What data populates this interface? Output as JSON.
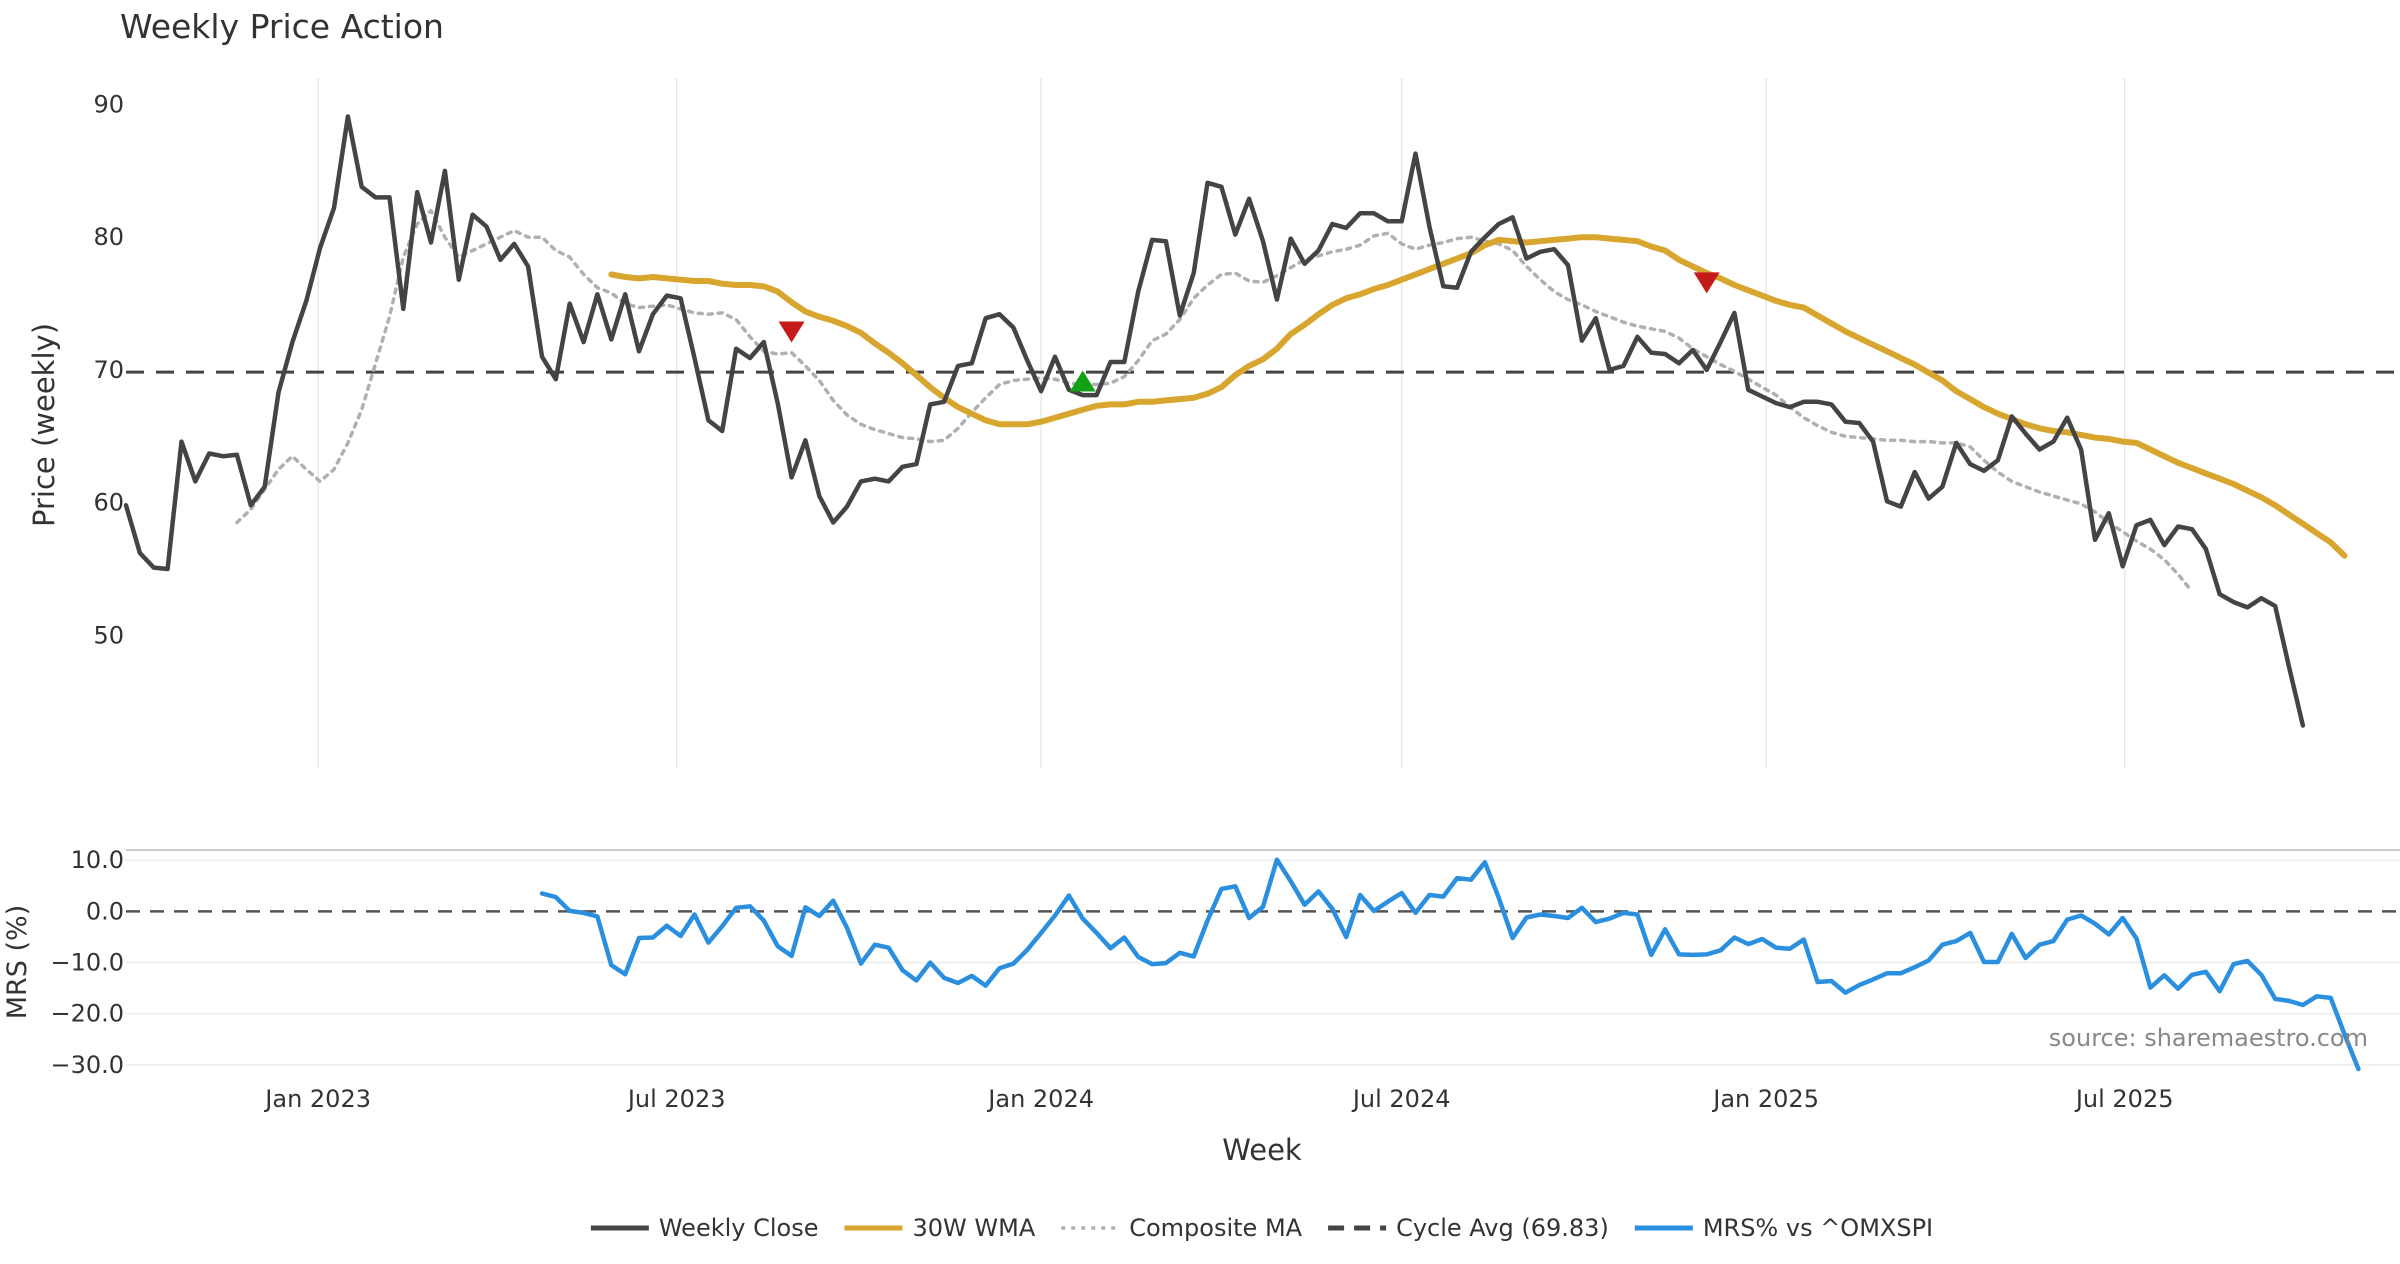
{
  "chart_data": {
    "type": "line",
    "title": "Weekly Price Action",
    "xlabel": "Week",
    "source": "source: sharemaestro.com",
    "x_range": [
      "2022-09-26",
      "2025-11-17"
    ],
    "x_ticks": [
      {
        "date": "2023-01-01",
        "label": "Jan 2023"
      },
      {
        "date": "2023-07-01",
        "label": "Jul 2023"
      },
      {
        "date": "2024-01-01",
        "label": "Jan 2024"
      },
      {
        "date": "2024-07-01",
        "label": "Jul 2024"
      },
      {
        "date": "2025-01-01",
        "label": "Jan 2025"
      },
      {
        "date": "2025-07-01",
        "label": "Jul 2025"
      }
    ],
    "price_panel": {
      "ylabel": "Price (weekly)",
      "ylim": [
        40,
        92
      ],
      "y_ticks": [
        50,
        60,
        70,
        80,
        90
      ],
      "grid": "vertical",
      "cycle_avg": 69.83,
      "series": [
        {
          "name": "Weekly Close",
          "color": "#444444",
          "style": "solid",
          "start": "2022-09-26",
          "step_days": 7,
          "values": [
            59.8,
            56.2,
            55.1,
            55.0,
            64.6,
            61.6,
            63.7,
            63.5,
            63.6,
            59.8,
            61.2,
            68.3,
            72.1,
            75.2,
            79.2,
            82.2,
            89.1,
            83.8,
            83.0,
            83.0,
            74.6,
            83.4,
            79.6,
            85.0,
            76.8,
            81.7,
            80.8,
            78.3,
            79.5,
            77.8,
            71.0,
            69.3,
            75.0,
            72.1,
            75.7,
            72.3,
            75.7,
            71.4,
            74.2,
            75.6,
            75.4,
            70.9,
            66.2,
            65.4,
            71.6,
            70.9,
            72.1,
            67.5,
            61.9,
            64.7,
            60.5,
            58.5,
            59.7,
            61.6,
            61.8,
            61.6,
            62.7,
            62.9,
            67.4,
            67.6,
            70.3,
            70.5,
            73.9,
            74.2,
            73.2,
            70.7,
            68.4,
            71.0,
            68.5,
            68.1,
            68.1,
            70.6,
            70.6,
            75.9,
            79.8,
            79.7,
            74.1,
            77.3,
            84.1,
            83.8,
            80.2,
            82.9,
            79.7,
            75.3,
            79.9,
            78.0,
            79.0,
            81.0,
            80.7,
            81.8,
            81.8,
            81.2,
            81.2,
            86.3,
            80.8,
            76.3,
            76.2,
            78.9,
            80.0,
            81.0,
            81.5,
            78.4,
            78.9,
            79.1,
            77.9,
            72.2,
            73.9,
            70.0,
            70.3,
            72.5,
            71.3,
            71.2,
            70.5,
            71.5,
            70.0,
            72.1,
            74.3,
            68.5,
            68.0,
            67.5,
            67.2,
            67.6,
            67.6,
            67.4,
            66.1,
            66.0,
            64.6,
            60.1,
            59.7,
            62.3,
            60.3,
            61.2,
            64.5,
            62.9,
            62.4,
            63.2,
            66.5,
            65.2,
            64.0,
            64.6,
            66.4,
            64.0,
            57.2,
            59.2,
            55.2,
            58.3,
            58.7,
            56.8,
            58.2,
            58.0,
            56.5,
            53.1,
            52.5,
            52.1,
            52.8,
            52.2,
            47.6,
            43.2
          ]
        },
        {
          "name": "30W WMA",
          "color": "#d8a62e",
          "style": "solid",
          "start": "2023-05-29",
          "step_days": 7,
          "values": [
            77.2,
            77.0,
            76.9,
            77.0,
            76.9,
            76.8,
            76.7,
            76.7,
            76.5,
            76.4,
            76.4,
            76.3,
            75.9,
            75.1,
            74.4,
            74.0,
            73.7,
            73.3,
            72.8,
            72.0,
            71.3,
            70.5,
            69.6,
            68.7,
            67.9,
            67.2,
            66.7,
            66.2,
            65.9,
            65.9,
            65.9,
            66.1,
            66.4,
            66.7,
            67.0,
            67.3,
            67.4,
            67.4,
            67.6,
            67.6,
            67.7,
            67.8,
            67.9,
            68.2,
            68.7,
            69.6,
            70.3,
            70.8,
            71.6,
            72.7,
            73.4,
            74.2,
            74.9,
            75.4,
            75.7,
            76.1,
            76.4,
            76.8,
            77.2,
            77.6,
            78.0,
            78.4,
            78.8,
            79.4,
            79.8,
            79.7,
            79.6,
            79.7,
            79.8,
            79.9,
            80.0,
            80.0,
            79.9,
            79.8,
            79.7,
            79.3,
            79.0,
            78.3,
            77.8,
            77.3,
            76.9,
            76.4,
            76.0,
            75.6,
            75.2,
            74.9,
            74.7,
            74.1,
            73.5,
            72.9,
            72.4,
            71.9,
            71.4,
            70.9,
            70.4,
            69.8,
            69.2,
            68.4,
            67.8,
            67.2,
            66.7,
            66.3,
            65.9,
            65.6,
            65.4,
            65.3,
            65.1,
            64.9,
            64.8,
            64.6,
            64.5,
            64.0,
            63.5,
            63.0,
            62.6,
            62.2,
            61.8,
            61.4,
            60.9,
            60.4,
            59.8,
            59.1,
            58.4,
            57.7,
            57.0,
            56.0
          ]
        },
        {
          "name": "Composite MA",
          "color": "#b0b0b0",
          "style": "dotted",
          "start": "2022-11-21",
          "step_days": 7,
          "values": [
            58.5,
            59.5,
            61.0,
            62.5,
            63.5,
            62.5,
            61.6,
            62.5,
            64.5,
            67.0,
            70.5,
            74.0,
            78.5,
            81.0,
            82.0,
            80.0,
            78.5,
            79.0,
            79.5,
            80.0,
            80.5,
            80.0,
            80.0,
            79.0,
            78.5,
            77.2,
            76.2,
            75.8,
            75.0,
            74.7,
            74.8,
            74.9,
            74.6,
            74.3,
            74.2,
            74.3,
            73.8,
            72.5,
            71.4,
            71.2,
            71.3,
            70.3,
            69.2,
            67.7,
            66.6,
            65.9,
            65.5,
            65.2,
            64.9,
            64.8,
            64.6,
            64.7,
            65.6,
            66.8,
            67.9,
            68.9,
            69.2,
            69.3,
            69.4,
            69.3,
            69.0,
            68.9,
            68.9,
            69.0,
            69.5,
            70.7,
            72.2,
            72.7,
            73.8,
            75.4,
            76.4,
            77.2,
            77.3,
            76.7,
            76.6,
            77.1,
            77.7,
            78.3,
            78.6,
            78.9,
            79.1,
            79.4,
            80.1,
            80.3,
            79.5,
            79.1,
            79.4,
            79.6,
            79.9,
            80.0,
            79.7,
            79.5,
            79.0,
            77.8,
            76.8,
            75.9,
            75.3,
            74.9,
            74.4,
            74.0,
            73.6,
            73.3,
            73.1,
            72.9,
            72.4,
            71.6,
            71.0,
            70.4,
            69.9,
            69.3,
            68.7,
            68.1,
            67.2,
            66.4,
            65.8,
            65.3,
            65.0,
            64.9,
            64.8,
            64.7,
            64.7,
            64.6,
            64.6,
            64.5,
            64.5,
            64.2,
            63.2,
            62.3,
            61.6,
            61.2,
            60.8,
            60.5,
            60.2,
            59.9,
            59.3,
            58.5,
            57.8,
            57.1,
            56.5,
            55.7,
            54.6,
            53.3
          ]
        }
      ],
      "signals": [
        {
          "type": "sell",
          "date": "2023-08-28",
          "value": 72.9,
          "color": "#c41a1a"
        },
        {
          "type": "buy",
          "date": "2024-01-22",
          "value": 69.2,
          "color": "#14a014"
        },
        {
          "type": "sell",
          "date": "2024-12-02",
          "value": 76.6,
          "color": "#c41a1a"
        }
      ]
    },
    "mrs_panel": {
      "ylabel": "MRS (%)",
      "ylim": [
        -31,
        12
      ],
      "y_ticks": [
        {
          "value": 10,
          "label": "10.0"
        },
        {
          "value": 0,
          "label": "0.0"
        },
        {
          "value": -10,
          "label": "−10.0"
        },
        {
          "value": -20,
          "label": "−20.0"
        },
        {
          "value": -30,
          "label": "−30.0"
        }
      ],
      "zero_line": 0,
      "series": {
        "name": "MRS% vs ^OMXSPI",
        "color": "#2b8fe0",
        "start": "2023-04-24",
        "step_days": 7,
        "values": [
          3.5,
          2.8,
          0.1,
          -0.3,
          -1.0,
          -10.5,
          -12.3,
          -5.2,
          -5.1,
          -2.8,
          -4.8,
          -0.6,
          -6.1,
          -2.9,
          0.7,
          1.0,
          -1.8,
          -6.8,
          -8.7,
          0.8,
          -0.9,
          2.1,
          -3.2,
          -10.2,
          -6.5,
          -7.1,
          -11.5,
          -13.5,
          -10.0,
          -13.0,
          -14.0,
          -12.6,
          -14.5,
          -11.1,
          -10.2,
          -7.5,
          -4.2,
          -0.8,
          3.1,
          -1.4,
          -4.2,
          -7.2,
          -5.1,
          -8.9,
          -10.3,
          -10.1,
          -8.1,
          -8.8,
          -1.8,
          4.4,
          4.9,
          -1.3,
          0.9,
          10.1,
          5.9,
          1.3,
          3.9,
          0.5,
          -5.0,
          3.2,
          0.1,
          1.9,
          3.6,
          -0.3,
          3.2,
          2.9,
          6.5,
          6.2,
          9.6,
          2.7,
          -5.2,
          -1.2,
          -0.6,
          -0.9,
          -1.3,
          0.7,
          -2.1,
          -1.4,
          -0.3,
          -0.6,
          -8.5,
          -3.5,
          -8.4,
          -8.5,
          -8.4,
          -7.6,
          -5.1,
          -6.4,
          -5.4,
          -7.1,
          -7.3,
          -5.5,
          -13.8,
          -13.6,
          -15.9,
          -14.4,
          -13.3,
          -12.1,
          -12.1,
          -10.9,
          -9.6,
          -6.5,
          -5.8,
          -4.2,
          -9.9,
          -9.9,
          -4.4,
          -9.1,
          -6.5,
          -5.8,
          -1.6,
          -0.8,
          -2.4,
          -4.5,
          -1.3,
          -5.3,
          -14.9,
          -12.5,
          -15.1,
          -12.4,
          -11.8,
          -15.6,
          -10.3,
          -9.7,
          -12.4,
          -17.1,
          -17.5,
          -18.3,
          -16.6,
          -16.9,
          -24.0,
          -30.8
        ]
      }
    },
    "legend": {
      "placement": "bottom-center",
      "entries": [
        {
          "label": "Weekly Close",
          "color": "#444444",
          "style": "solid"
        },
        {
          "label": "30W WMA",
          "color": "#d8a62e",
          "style": "solid"
        },
        {
          "label": "Composite MA",
          "color": "#b0b0b0",
          "style": "dotted"
        },
        {
          "label": "Cycle Avg (69.83)",
          "color": "#444444",
          "style": "dashed"
        },
        {
          "label": "MRS% vs ^OMXSPI",
          "color": "#2b8fe0",
          "style": "solid"
        }
      ]
    }
  }
}
